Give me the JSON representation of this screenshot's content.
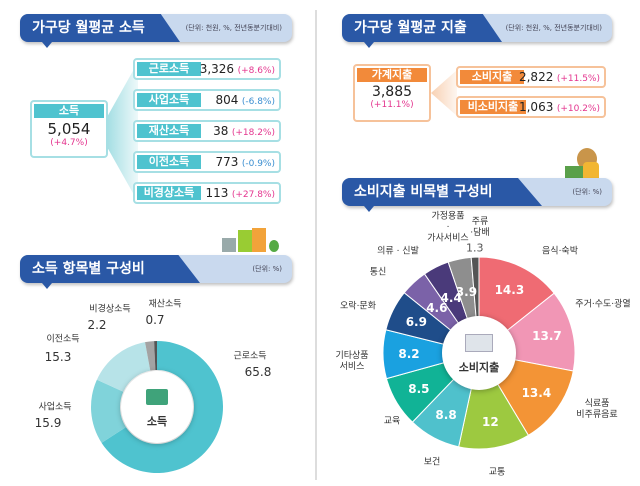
{
  "income": {
    "title": "가구당 월평균 소득",
    "unit": "(단위: 천원, %, 전년동분기대비)",
    "total": {
      "label": "소득",
      "value": "5,054",
      "change": "(+4.7%)"
    },
    "items": [
      {
        "label": "근로소득",
        "value": "3,326",
        "change": "(+8.6%)",
        "dir": "pos"
      },
      {
        "label": "사업소득",
        "value": "804",
        "change": "(-6.8%)",
        "dir": "neg"
      },
      {
        "label": "재산소득",
        "value": "38",
        "change": "(+18.2%)",
        "dir": "pos"
      },
      {
        "label": "이전소득",
        "value": "773",
        "change": "(-0.9%)",
        "dir": "neg"
      },
      {
        "label": "비경상소득",
        "value": "113",
        "change": "(+27.8%)",
        "dir": "pos"
      }
    ]
  },
  "expense": {
    "title": "가구당 월평균 지출",
    "unit": "(단위: 천원, %, 전년동분기대비)",
    "total": {
      "label": "가계지출",
      "value": "3,885",
      "change": "(+11.1%)"
    },
    "items": [
      {
        "label": "소비지출",
        "value": "2,822",
        "change": "(+11.5%)"
      },
      {
        "label": "비소비지출",
        "value": "1,063",
        "change": "(+10.2%)"
      }
    ]
  },
  "chart_data": [
    {
      "type": "pie",
      "title": "소득 항목별 구성비",
      "unit": "(단위: %)",
      "center_label": "소득",
      "categories": [
        "근로소득",
        "사업소득",
        "이전소득",
        "비경상소득",
        "재산소득"
      ],
      "values": [
        65.8,
        15.9,
        15.3,
        2.2,
        0.7
      ],
      "colors": [
        "#4fc3cf",
        "#80d3da",
        "#b7e3e8",
        "#a3a3a3",
        "#555555"
      ]
    },
    {
      "type": "pie",
      "title": "소비지출 비목별 구성비",
      "unit": "(단위: %)",
      "center_label": "소비지출",
      "categories": [
        "음식·숙박",
        "주거·수도·광열",
        "식료품\n비주류음료",
        "교통",
        "보건",
        "교육",
        "기타상품\n서비스",
        "오락·문화",
        "통신",
        "의류 · 신발",
        "가정용품\n·\n가사서비스",
        "주류\n·담배"
      ],
      "values": [
        14.3,
        13.7,
        13.4,
        12.0,
        8.8,
        8.5,
        8.2,
        6.9,
        4.6,
        4.4,
        3.9,
        1.3
      ],
      "colors": [
        "#ef6b73",
        "#f196b5",
        "#f39436",
        "#9dc940",
        "#4fc1cc",
        "#11b396",
        "#1aa1e0",
        "#1f4d8a",
        "#7b62a8",
        "#4a3a7a",
        "#8e8e8e",
        "#555555"
      ]
    }
  ]
}
